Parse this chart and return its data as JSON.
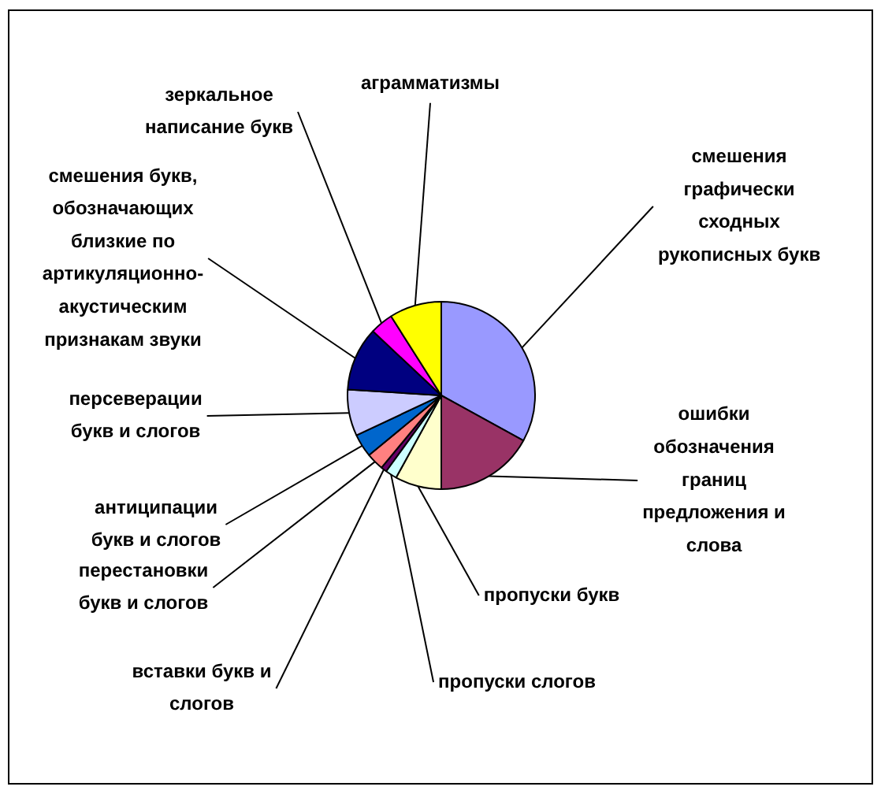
{
  "chart_data": {
    "type": "pie",
    "categories": [
      "смешения\nграфически\nсходных\nрукописных букв",
      "ошибки\nобозначения\nграниц\nпредложения и\nслова",
      "пропуски букв",
      "пропуски слогов",
      "вставки букв и\nслогов",
      "перестановки\nбукв и слогов",
      "антиципации\nбукв и слогов",
      "персеверации\nбукв и слогов",
      "смешения букв,\nобозначающих\nблизкие по\nартикуляционно-\nакустическим\nпризнакам звуки",
      "зеркальное\nнаписание букв",
      "аграмматизмы"
    ],
    "values": [
      33,
      17,
      8,
      2,
      1,
      3,
      4,
      8,
      11,
      4,
      9
    ],
    "colors": [
      "#9999ff",
      "#993366",
      "#ffffcc",
      "#ccffff",
      "#660066",
      "#ff8080",
      "#0066cc",
      "#ccccff",
      "#000080",
      "#ff00ff",
      "#ffff00"
    ]
  }
}
